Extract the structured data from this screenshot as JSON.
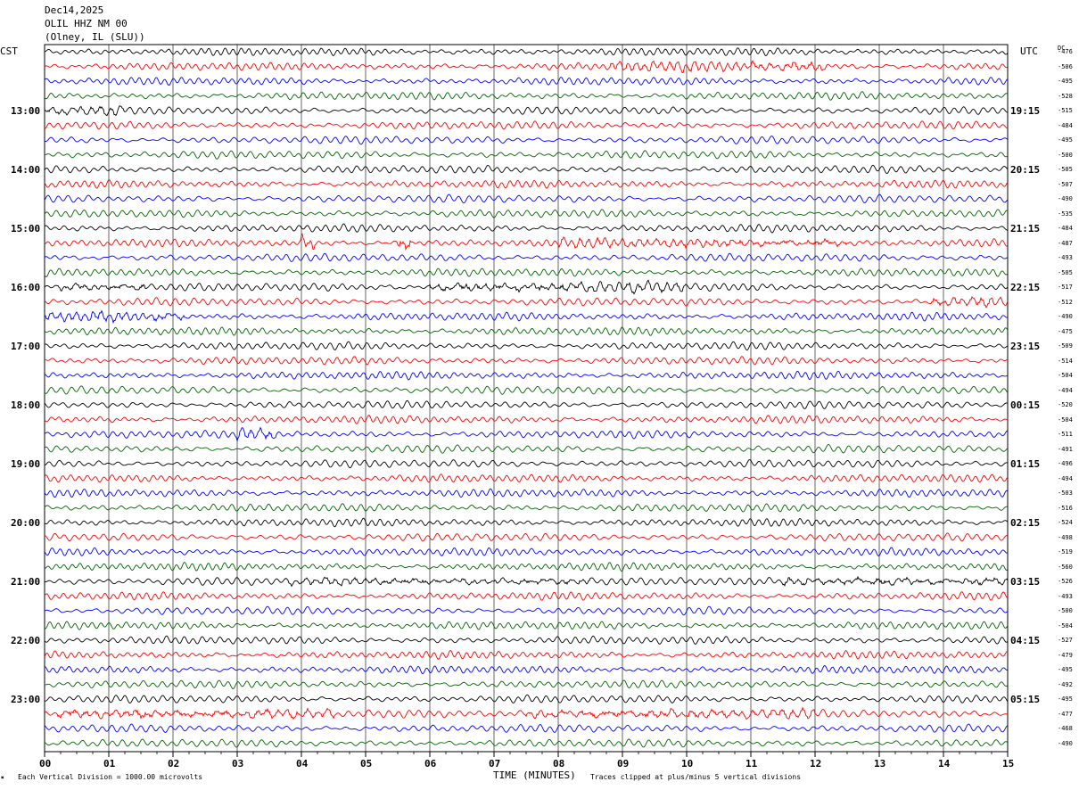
{
  "header": {
    "date": "Dec14,2025",
    "station": "OLIL HHZ NM 00",
    "location": "(Olney, IL (SLU))"
  },
  "left_timezone": "CST",
  "right_timezone": "UTC",
  "dc_label": "DC",
  "footer": {
    "scale_note": "Each Vertical Division = 1000.00 microvolts",
    "clip_note": "Traces clipped at plus/minus 5 vertical divisions",
    "corner_mark": "✖"
  },
  "chart_data": {
    "type": "line",
    "xlabel": "TIME (MINUTES)",
    "xlim": [
      0,
      15
    ],
    "x_ticks": [
      "00",
      "01",
      "02",
      "03",
      "04",
      "05",
      "06",
      "07",
      "08",
      "09",
      "10",
      "11",
      "12",
      "13",
      "14",
      "15"
    ],
    "rows_per_hour": 4,
    "trace_colors": [
      "#000000",
      "#ff0000",
      "#0000ff",
      "#006400"
    ],
    "left_hour_labels": [
      "13:00",
      "14:00",
      "15:00",
      "16:00",
      "17:00",
      "18:00",
      "19:00",
      "20:00",
      "21:00",
      "22:00",
      "23:00"
    ],
    "right_hour_labels": [
      "19:15",
      "20:15",
      "21:15",
      "22:15",
      "23:15",
      "00:15",
      "01:15",
      "02:15",
      "03:15",
      "04:15",
      "05:15"
    ],
    "dc_offsets": [
      -476,
      -506,
      -495,
      -528,
      -515,
      -484,
      -495,
      -500,
      -505,
      -507,
      -490,
      -535,
      -484,
      -487,
      -493,
      -505,
      -517,
      -512,
      -490,
      -475,
      -509,
      -514,
      -504,
      -494,
      -520,
      -504,
      -511,
      -491,
      -496,
      -494,
      -503,
      -516,
      -524,
      -498,
      -519,
      -560,
      -526,
      -493,
      -500,
      -504,
      -527,
      -479,
      -495,
      -492,
      -495,
      -477,
      -468,
      -490
    ],
    "bursts": [
      {
        "row": 1,
        "x0": 8.8,
        "x1": 12.2,
        "amp": 1.5
      },
      {
        "row": 4,
        "x0": 0.0,
        "x1": 1.3,
        "amp": 1.3
      },
      {
        "row": 13,
        "x0": 4.0,
        "x1": 4.2,
        "amp": 2.6
      },
      {
        "row": 13,
        "x0": 5.5,
        "x1": 5.7,
        "amp": 2.6
      },
      {
        "row": 13,
        "x0": 8.0,
        "x1": 12.5,
        "amp": 1.4
      },
      {
        "row": 16,
        "x0": 0.2,
        "x1": 1.6,
        "amp": 1.3
      },
      {
        "row": 16,
        "x0": 6.0,
        "x1": 10.0,
        "amp": 1.6
      },
      {
        "row": 17,
        "x0": 13.8,
        "x1": 15.0,
        "amp": 1.4
      },
      {
        "row": 18,
        "x0": 0.0,
        "x1": 2.2,
        "amp": 1.4
      },
      {
        "row": 26,
        "x0": 3.0,
        "x1": 3.6,
        "amp": 1.7
      },
      {
        "row": 36,
        "x0": 3.8,
        "x1": 8.5,
        "amp": 1.2
      },
      {
        "row": 36,
        "x0": 11.5,
        "x1": 15.0,
        "amp": 1.4
      },
      {
        "row": 45,
        "x0": 0.2,
        "x1": 4.5,
        "amp": 1.5
      },
      {
        "row": 45,
        "x0": 7.5,
        "x1": 12.0,
        "amp": 1.5
      }
    ]
  }
}
